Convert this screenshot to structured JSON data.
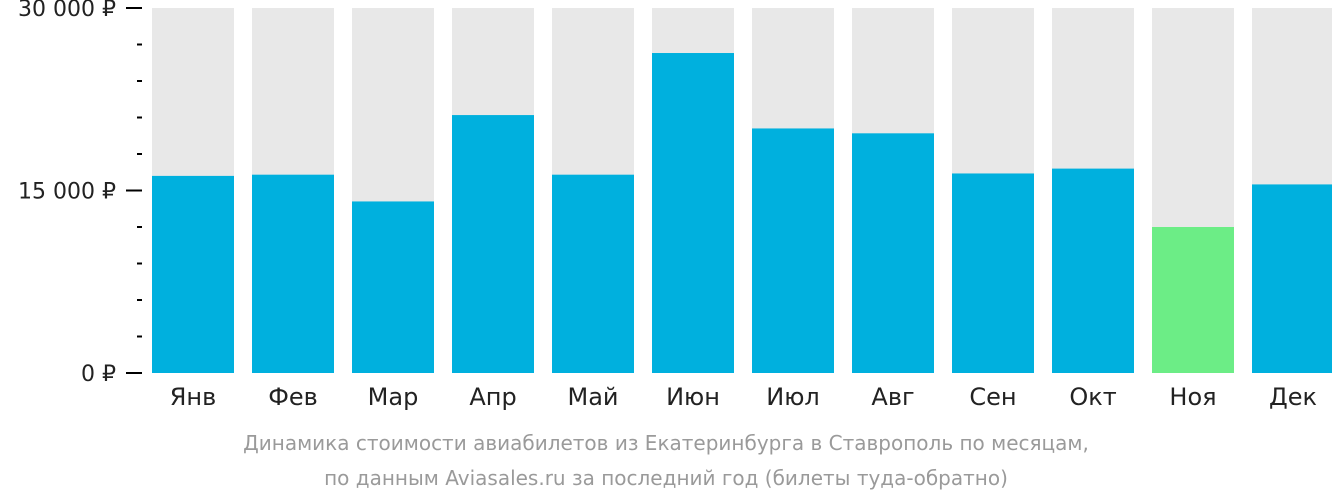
{
  "chart_data": {
    "type": "bar",
    "categories": [
      "Янв",
      "Фев",
      "Мар",
      "Апр",
      "Май",
      "Июн",
      "Июл",
      "Авг",
      "Сен",
      "Окт",
      "Ноя",
      "Дек"
    ],
    "values": [
      16200,
      16300,
      14100,
      21200,
      16300,
      26300,
      20100,
      19700,
      16400,
      16800,
      12000,
      15500
    ],
    "highlight_index": 10,
    "ylim": [
      0,
      30000
    ],
    "y_ticks": [
      {
        "value": 0,
        "label": "0 ₽"
      },
      {
        "value": 15000,
        "label": "15 000 ₽"
      },
      {
        "value": 30000,
        "label": "30 000 ₽"
      }
    ],
    "minor_tick_step": 3000,
    "grid": false,
    "colors": {
      "bar": "#00b0de",
      "highlight": "#6ced86",
      "track": "#e8e8e8",
      "axis": "#000000"
    }
  },
  "caption": {
    "line1": "Динамика стоимости авиабилетов из Екатеринбурга в Ставрополь по месяцам,",
    "line2": "по данным Aviasales.ru за последний год (билеты туда-обратно)"
  }
}
